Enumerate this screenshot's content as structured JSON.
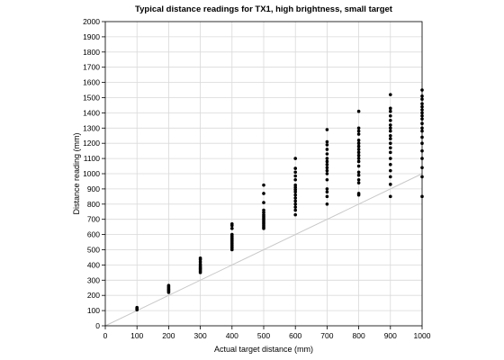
{
  "chart_data": {
    "type": "scatter",
    "title": "Typical distance readings for TX1, high brightness, small target",
    "xlabel": "Actual target distance (mm)",
    "ylabel": "Distance reading (mm)",
    "xlim": [
      0,
      1000
    ],
    "ylim": [
      0,
      2000
    ],
    "xticks": [
      0,
      100,
      200,
      300,
      400,
      500,
      600,
      700,
      800,
      900,
      1000
    ],
    "yticks": [
      0,
      100,
      200,
      300,
      400,
      500,
      600,
      700,
      800,
      900,
      1000,
      1100,
      1200,
      1300,
      1400,
      1500,
      1600,
      1700,
      1800,
      1900,
      2000
    ],
    "grid": true,
    "reference_line": {
      "x": [
        0,
        1000
      ],
      "y": [
        0,
        1000
      ],
      "color": "#c8c8c8"
    },
    "series": [
      {
        "color": "#000000",
        "points": [
          {
            "x": 100,
            "y": 105
          },
          {
            "x": 100,
            "y": 110
          },
          {
            "x": 100,
            "y": 115
          },
          {
            "x": 100,
            "y": 120
          },
          {
            "x": 200,
            "y": 220
          },
          {
            "x": 200,
            "y": 228
          },
          {
            "x": 200,
            "y": 235
          },
          {
            "x": 200,
            "y": 242
          },
          {
            "x": 200,
            "y": 250
          },
          {
            "x": 200,
            "y": 258
          },
          {
            "x": 200,
            "y": 265
          },
          {
            "x": 300,
            "y": 350
          },
          {
            "x": 300,
            "y": 360
          },
          {
            "x": 300,
            "y": 370
          },
          {
            "x": 300,
            "y": 378
          },
          {
            "x": 300,
            "y": 385
          },
          {
            "x": 300,
            "y": 395
          },
          {
            "x": 300,
            "y": 405
          },
          {
            "x": 300,
            "y": 420
          },
          {
            "x": 300,
            "y": 435
          },
          {
            "x": 300,
            "y": 445
          },
          {
            "x": 400,
            "y": 500
          },
          {
            "x": 400,
            "y": 510
          },
          {
            "x": 400,
            "y": 520
          },
          {
            "x": 400,
            "y": 530
          },
          {
            "x": 400,
            "y": 540
          },
          {
            "x": 400,
            "y": 550
          },
          {
            "x": 400,
            "y": 560
          },
          {
            "x": 400,
            "y": 570
          },
          {
            "x": 400,
            "y": 580
          },
          {
            "x": 400,
            "y": 590
          },
          {
            "x": 400,
            "y": 600
          },
          {
            "x": 400,
            "y": 640
          },
          {
            "x": 400,
            "y": 660
          },
          {
            "x": 400,
            "y": 670
          },
          {
            "x": 500,
            "y": 640
          },
          {
            "x": 500,
            "y": 650
          },
          {
            "x": 500,
            "y": 660
          },
          {
            "x": 500,
            "y": 670
          },
          {
            "x": 500,
            "y": 680
          },
          {
            "x": 500,
            "y": 690
          },
          {
            "x": 500,
            "y": 700
          },
          {
            "x": 500,
            "y": 710
          },
          {
            "x": 500,
            "y": 720
          },
          {
            "x": 500,
            "y": 730
          },
          {
            "x": 500,
            "y": 745
          },
          {
            "x": 500,
            "y": 760
          },
          {
            "x": 500,
            "y": 810
          },
          {
            "x": 500,
            "y": 870
          },
          {
            "x": 500,
            "y": 925
          },
          {
            "x": 600,
            "y": 730
          },
          {
            "x": 600,
            "y": 760
          },
          {
            "x": 600,
            "y": 780
          },
          {
            "x": 600,
            "y": 800
          },
          {
            "x": 600,
            "y": 820
          },
          {
            "x": 600,
            "y": 840
          },
          {
            "x": 600,
            "y": 860
          },
          {
            "x": 600,
            "y": 880
          },
          {
            "x": 600,
            "y": 895
          },
          {
            "x": 600,
            "y": 910
          },
          {
            "x": 600,
            "y": 925
          },
          {
            "x": 600,
            "y": 960
          },
          {
            "x": 600,
            "y": 985
          },
          {
            "x": 600,
            "y": 1010
          },
          {
            "x": 600,
            "y": 1035
          },
          {
            "x": 600,
            "y": 1100
          },
          {
            "x": 700,
            "y": 800
          },
          {
            "x": 700,
            "y": 850
          },
          {
            "x": 700,
            "y": 880
          },
          {
            "x": 700,
            "y": 900
          },
          {
            "x": 700,
            "y": 960
          },
          {
            "x": 700,
            "y": 1000
          },
          {
            "x": 700,
            "y": 1020
          },
          {
            "x": 700,
            "y": 1040
          },
          {
            "x": 700,
            "y": 1060
          },
          {
            "x": 700,
            "y": 1080
          },
          {
            "x": 700,
            "y": 1100
          },
          {
            "x": 700,
            "y": 1130
          },
          {
            "x": 700,
            "y": 1160
          },
          {
            "x": 700,
            "y": 1190
          },
          {
            "x": 700,
            "y": 1210
          },
          {
            "x": 700,
            "y": 1290
          },
          {
            "x": 800,
            "y": 860
          },
          {
            "x": 800,
            "y": 870
          },
          {
            "x": 800,
            "y": 940
          },
          {
            "x": 800,
            "y": 960
          },
          {
            "x": 800,
            "y": 990
          },
          {
            "x": 800,
            "y": 1010
          },
          {
            "x": 800,
            "y": 1050
          },
          {
            "x": 800,
            "y": 1080
          },
          {
            "x": 800,
            "y": 1100
          },
          {
            "x": 800,
            "y": 1120
          },
          {
            "x": 800,
            "y": 1140
          },
          {
            "x": 800,
            "y": 1160
          },
          {
            "x": 800,
            "y": 1180
          },
          {
            "x": 800,
            "y": 1200
          },
          {
            "x": 800,
            "y": 1220
          },
          {
            "x": 800,
            "y": 1260
          },
          {
            "x": 800,
            "y": 1280
          },
          {
            "x": 800,
            "y": 1300
          },
          {
            "x": 800,
            "y": 1410
          },
          {
            "x": 900,
            "y": 850
          },
          {
            "x": 900,
            "y": 930
          },
          {
            "x": 900,
            "y": 980
          },
          {
            "x": 900,
            "y": 1020
          },
          {
            "x": 900,
            "y": 1060
          },
          {
            "x": 900,
            "y": 1100
          },
          {
            "x": 900,
            "y": 1140
          },
          {
            "x": 900,
            "y": 1170
          },
          {
            "x": 900,
            "y": 1200
          },
          {
            "x": 900,
            "y": 1230
          },
          {
            "x": 900,
            "y": 1250
          },
          {
            "x": 900,
            "y": 1280
          },
          {
            "x": 900,
            "y": 1300
          },
          {
            "x": 900,
            "y": 1320
          },
          {
            "x": 900,
            "y": 1350
          },
          {
            "x": 900,
            "y": 1380
          },
          {
            "x": 900,
            "y": 1410
          },
          {
            "x": 900,
            "y": 1430
          },
          {
            "x": 900,
            "y": 1520
          },
          {
            "x": 1000,
            "y": 850
          },
          {
            "x": 1000,
            "y": 980
          },
          {
            "x": 1000,
            "y": 1040
          },
          {
            "x": 1000,
            "y": 1100
          },
          {
            "x": 1000,
            "y": 1150
          },
          {
            "x": 1000,
            "y": 1200
          },
          {
            "x": 1000,
            "y": 1240
          },
          {
            "x": 1000,
            "y": 1280
          },
          {
            "x": 1000,
            "y": 1300
          },
          {
            "x": 1000,
            "y": 1330
          },
          {
            "x": 1000,
            "y": 1360
          },
          {
            "x": 1000,
            "y": 1380
          },
          {
            "x": 1000,
            "y": 1400
          },
          {
            "x": 1000,
            "y": 1420
          },
          {
            "x": 1000,
            "y": 1440
          },
          {
            "x": 1000,
            "y": 1460
          },
          {
            "x": 1000,
            "y": 1490
          },
          {
            "x": 1000,
            "y": 1510
          },
          {
            "x": 1000,
            "y": 1550
          }
        ]
      }
    ]
  }
}
